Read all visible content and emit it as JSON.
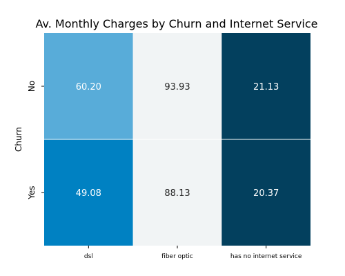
{
  "chart_data": {
    "type": "heatmap",
    "title": "Av. Monthly Charges by Churn and Internet Service",
    "xlabel": "",
    "ylabel": "Churn",
    "x_categories": [
      "dsl",
      "fiber optic",
      "has no internet service"
    ],
    "y_categories": [
      "No",
      "Yes"
    ],
    "values": [
      [
        60.2,
        93.93,
        21.13
      ],
      [
        49.08,
        88.13,
        20.37
      ]
    ],
    "value_labels": [
      [
        "60.20",
        "93.93",
        "21.13"
      ],
      [
        "49.08",
        "88.13",
        "20.37"
      ]
    ],
    "cell_colors": [
      [
        "#58acd9",
        "#f1f4f5",
        "#03405e"
      ],
      [
        "#0081c2",
        "#f1f4f5",
        "#03405e"
      ]
    ],
    "label_colors": [
      [
        "#ffffff",
        "#262626",
        "#ffffff"
      ],
      [
        "#ffffff",
        "#262626",
        "#ffffff"
      ]
    ],
    "colorbar": false,
    "grid": false,
    "cell_divider_color": "#ffffff"
  }
}
